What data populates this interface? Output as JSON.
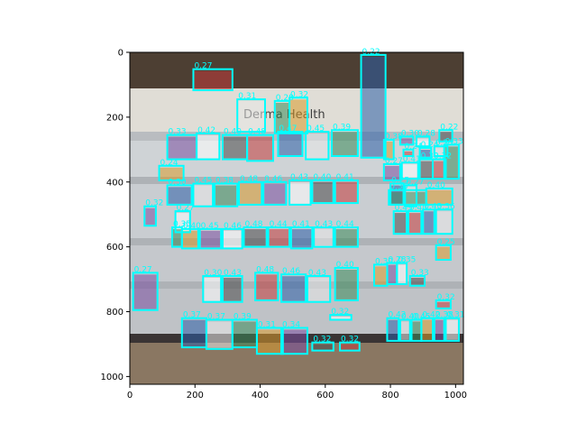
{
  "chart_data": {
    "type": "scatter",
    "title": "",
    "xlabel": "",
    "ylabel": "",
    "xlim": [
      0,
      1024
    ],
    "ylim": [
      1024,
      0
    ],
    "xticks": [
      0,
      200,
      400,
      600,
      800,
      1000
    ],
    "yticks": [
      0,
      200,
      400,
      600,
      800,
      1000
    ],
    "grid": false,
    "colors": {
      "box": "#00ffff",
      "background_top": "#5a4a3a",
      "wall": "#d8d8d0",
      "shelf": "#c8ccd0",
      "floor": "#7a6a58"
    },
    "photo_text": "Derma Health",
    "detections": [
      {
        "x": [
          195,
          315
        ],
        "y": [
          52,
          117
        ],
        "score": "0.27"
      },
      {
        "x": [
          710,
          785
        ],
        "y": [
          8,
          325
        ],
        "score": "0.22"
      },
      {
        "x": [
          330,
          415
        ],
        "y": [
          145,
          245
        ],
        "score": "0.31"
      },
      {
        "x": [
          445,
          490
        ],
        "y": [
          150,
          250
        ],
        "score": "0.28"
      },
      {
        "x": [
          490,
          545
        ],
        "y": [
          140,
          250
        ],
        "score": "0.32"
      },
      {
        "x": [
          115,
          205
        ],
        "y": [
          255,
          330
        ],
        "score": "0.33"
      },
      {
        "x": [
          205,
          275
        ],
        "y": [
          250,
          330
        ],
        "score": "0.42"
      },
      {
        "x": [
          285,
          360
        ],
        "y": [
          255,
          330
        ],
        "score": "0.40"
      },
      {
        "x": [
          360,
          440
        ],
        "y": [
          255,
          335
        ],
        "score": "0.48"
      },
      {
        "x": [
          455,
          530
        ],
        "y": [
          245,
          320
        ],
        "score": "0.47"
      },
      {
        "x": [
          540,
          610
        ],
        "y": [
          245,
          330
        ],
        "score": "0.45"
      },
      {
        "x": [
          620,
          700
        ],
        "y": [
          240,
          320
        ],
        "score": "0.39"
      },
      {
        "x": [
          780,
          810
        ],
        "y": [
          270,
          330
        ],
        "score": "0.38"
      },
      {
        "x": [
          830,
          870
        ],
        "y": [
          260,
          285
        ],
        "score": "0.30"
      },
      {
        "x": [
          880,
          920
        ],
        "y": [
          260,
          290
        ],
        "score": "0.28"
      },
      {
        "x": [
          950,
          990
        ],
        "y": [
          240,
          275
        ],
        "score": "0.22"
      },
      {
        "x": [
          840,
          870
        ],
        "y": [
          300,
          320
        ],
        "score": "0.24"
      },
      {
        "x": [
          890,
          925
        ],
        "y": [
          295,
          325
        ],
        "score": "0.24"
      },
      {
        "x": [
          935,
          975
        ],
        "y": [
          290,
          320
        ],
        "score": "0.23"
      },
      {
        "x": [
          965,
          1010
        ],
        "y": [
          285,
          390
        ],
        "score": "0.33"
      },
      {
        "x": [
          90,
          165
        ],
        "y": [
          350,
          395
        ],
        "score": "0.24"
      },
      {
        "x": [
          780,
          830
        ],
        "y": [
          345,
          395
        ],
        "score": "0.27"
      },
      {
        "x": [
          835,
          885
        ],
        "y": [
          340,
          390
        ],
        "score": "0.41"
      },
      {
        "x": [
          890,
          930
        ],
        "y": [
          330,
          390
        ],
        "score": "0.30"
      },
      {
        "x": [
          930,
          970
        ],
        "y": [
          330,
          390
        ],
        "score": "0.32"
      },
      {
        "x": [
          115,
          190
        ],
        "y": [
          410,
          470
        ],
        "score": "0.30"
      },
      {
        "x": [
          195,
          255
        ],
        "y": [
          405,
          475
        ],
        "score": "0.45"
      },
      {
        "x": [
          260,
          330
        ],
        "y": [
          405,
          475
        ],
        "score": "0.38"
      },
      {
        "x": [
          335,
          405
        ],
        "y": [
          400,
          470
        ],
        "score": "0.48"
      },
      {
        "x": [
          410,
          480
        ],
        "y": [
          400,
          470
        ],
        "score": "0.46"
      },
      {
        "x": [
          490,
          555
        ],
        "y": [
          395,
          470
        ],
        "score": "0.43"
      },
      {
        "x": [
          560,
          625
        ],
        "y": [
          395,
          465
        ],
        "score": "0.40"
      },
      {
        "x": [
          630,
          700
        ],
        "y": [
          395,
          465
        ],
        "score": "0.41"
      },
      {
        "x": [
          800,
          840
        ],
        "y": [
          405,
          470
        ],
        "score": "0.25"
      },
      {
        "x": [
          845,
          880
        ],
        "y": [
          410,
          475
        ],
        "score": "0.27"
      },
      {
        "x": [
          795,
          910
        ],
        "y": [
          425,
          470
        ],
        "score": "0.36"
      },
      {
        "x": [
          910,
          990
        ],
        "y": [
          420,
          470
        ],
        "score": "0.40"
      },
      {
        "x": [
          45,
          80
        ],
        "y": [
          475,
          535
        ],
        "score": "0.32"
      },
      {
        "x": [
          140,
          185
        ],
        "y": [
          490,
          555
        ],
        "score": "0.27"
      },
      {
        "x": [
          810,
          850
        ],
        "y": [
          490,
          560
        ],
        "score": "0.45"
      },
      {
        "x": [
          855,
          895
        ],
        "y": [
          490,
          560
        ],
        "score": "0.40"
      },
      {
        "x": [
          900,
          935
        ],
        "y": [
          485,
          560
        ],
        "score": "0.43"
      },
      {
        "x": [
          940,
          990
        ],
        "y": [
          485,
          560
        ],
        "score": "0.36"
      },
      {
        "x": [
          130,
          160
        ],
        "y": [
          540,
          600
        ],
        "score": "0.35"
      },
      {
        "x": [
          160,
          210
        ],
        "y": [
          545,
          605
        ],
        "score": "0.40"
      },
      {
        "x": [
          215,
          280
        ],
        "y": [
          545,
          605
        ],
        "score": "0.45"
      },
      {
        "x": [
          285,
          345
        ],
        "y": [
          545,
          605
        ],
        "score": "0.46"
      },
      {
        "x": [
          350,
          420
        ],
        "y": [
          540,
          600
        ],
        "score": "0.48"
      },
      {
        "x": [
          425,
          490
        ],
        "y": [
          540,
          600
        ],
        "score": "0.44"
      },
      {
        "x": [
          495,
          560
        ],
        "y": [
          540,
          605
        ],
        "score": "0.41"
      },
      {
        "x": [
          565,
          625
        ],
        "y": [
          540,
          600
        ],
        "score": "0.43"
      },
      {
        "x": [
          630,
          700
        ],
        "y": [
          540,
          600
        ],
        "score": "0.44"
      },
      {
        "x": [
          940,
          985
        ],
        "y": [
          595,
          640
        ],
        "score": "0.25"
      },
      {
        "x": [
          10,
          85
        ],
        "y": [
          680,
          795
        ],
        "score": "0.27"
      },
      {
        "x": [
          225,
          280
        ],
        "y": [
          690,
          770
        ],
        "score": "0.30"
      },
      {
        "x": [
          285,
          345
        ],
        "y": [
          690,
          770
        ],
        "score": "0.43"
      },
      {
        "x": [
          385,
          455
        ],
        "y": [
          680,
          765
        ],
        "score": "0.48"
      },
      {
        "x": [
          465,
          540
        ],
        "y": [
          685,
          770
        ],
        "score": "0.46"
      },
      {
        "x": [
          545,
          615
        ],
        "y": [
          690,
          770
        ],
        "score": "0.43"
      },
      {
        "x": [
          630,
          700
        ],
        "y": [
          665,
          765
        ],
        "score": "0.40"
      },
      {
        "x": [
          750,
          790
        ],
        "y": [
          655,
          720
        ],
        "score": "0.30"
      },
      {
        "x": [
          790,
          820
        ],
        "y": [
          650,
          715
        ],
        "score": "0.28"
      },
      {
        "x": [
          820,
          850
        ],
        "y": [
          650,
          715
        ],
        "score": "0.35"
      },
      {
        "x": [
          860,
          905
        ],
        "y": [
          690,
          720
        ],
        "score": "0.33"
      },
      {
        "x": [
          940,
          985
        ],
        "y": [
          765,
          790
        ],
        "score": "0.32"
      },
      {
        "x": [
          160,
          235
        ],
        "y": [
          820,
          910
        ],
        "score": "0.37"
      },
      {
        "x": [
          235,
          315
        ],
        "y": [
          825,
          915
        ],
        "score": "0.37"
      },
      {
        "x": [
          315,
          390
        ],
        "y": [
          825,
          910
        ],
        "score": "0.39"
      },
      {
        "x": [
          390,
          470
        ],
        "y": [
          850,
          930
        ],
        "score": "0.31"
      },
      {
        "x": [
          465,
          545
        ],
        "y": [
          850,
          930
        ],
        "score": "0.34"
      },
      {
        "x": [
          615,
          680
        ],
        "y": [
          810,
          825
        ],
        "score": "0.32"
      },
      {
        "x": [
          560,
          625
        ],
        "y": [
          895,
          920
        ],
        "score": "0.32"
      },
      {
        "x": [
          645,
          705
        ],
        "y": [
          895,
          920
        ],
        "score": "0.32"
      },
      {
        "x": [
          790,
          825
        ],
        "y": [
          820,
          890
        ],
        "score": "0.42"
      },
      {
        "x": [
          830,
          860
        ],
        "y": [
          825,
          890
        ],
        "score": "0.40"
      },
      {
        "x": [
          865,
          895
        ],
        "y": [
          825,
          890
        ],
        "score": "0.45"
      },
      {
        "x": [
          895,
          930
        ],
        "y": [
          820,
          890
        ],
        "score": "0.42"
      },
      {
        "x": [
          935,
          965
        ],
        "y": [
          820,
          890
        ],
        "score": "0.38"
      },
      {
        "x": [
          970,
          1010
        ],
        "y": [
          820,
          890
        ],
        "score": "0.31"
      }
    ]
  }
}
